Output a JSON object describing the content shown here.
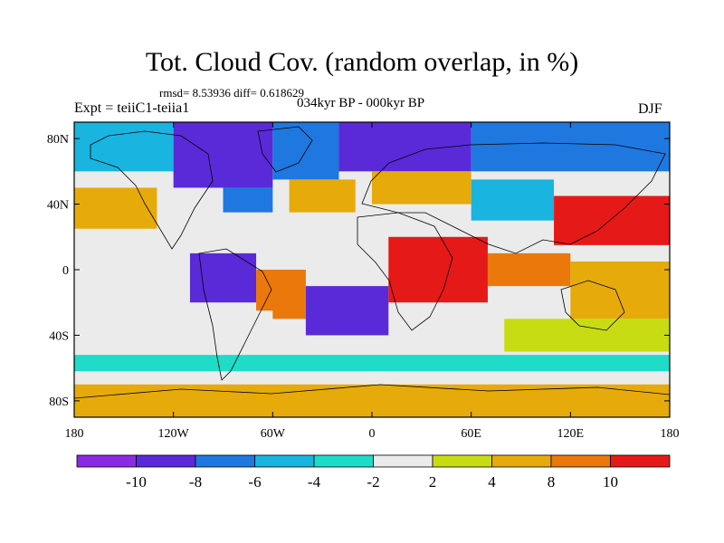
{
  "chart_data": {
    "type": "heatmap",
    "title": "Tot. Cloud Cov. (random overlap, in %)",
    "stats_line": "rmsd= 8.53936 diff= 0.618629",
    "left_label": "Expt = teiiC1-teiia1",
    "center_label": "034kyr BP - 000kyr BP",
    "right_label": "DJF",
    "projection": "cylindrical-equidistant",
    "xlim": [
      -180,
      180
    ],
    "ylim": [
      -90,
      90
    ],
    "x_ticks": [
      {
        "value": -180,
        "label": "180"
      },
      {
        "value": -120,
        "label": "120W"
      },
      {
        "value": -60,
        "label": "60W"
      },
      {
        "value": 0,
        "label": "0"
      },
      {
        "value": 60,
        "label": "60E"
      },
      {
        "value": 120,
        "label": "120E"
      },
      {
        "value": 180,
        "label": "180"
      }
    ],
    "y_ticks": [
      {
        "value": 80,
        "label": "80N"
      },
      {
        "value": 40,
        "label": "40N"
      },
      {
        "value": 0,
        "label": "0"
      },
      {
        "value": -40,
        "label": "40S"
      },
      {
        "value": -80,
        "label": "80S"
      }
    ],
    "levels": [
      -10,
      -8,
      -6,
      -4,
      -2,
      2,
      4,
      8,
      10
    ],
    "level_labels": [
      "-10",
      "-8",
      "-6",
      "-4",
      "-2",
      "2",
      "4",
      "8",
      "10"
    ],
    "colors": [
      "#8a2be2",
      "#5a2ad8",
      "#1e78e0",
      "#19b4e0",
      "#1edcc8",
      "#ebebeb",
      "#c8dc14",
      "#e6aa0a",
      "#eb780a",
      "#e61919"
    ],
    "legend_position": "bottom",
    "regions": [
      {
        "lon_min": -180,
        "lon_max": -120,
        "lat_min": 60,
        "lat_max": 90,
        "value": -6
      },
      {
        "lon_min": -120,
        "lon_max": -60,
        "lat_min": 50,
        "lat_max": 90,
        "value": -10
      },
      {
        "lon_min": -60,
        "lon_max": -20,
        "lat_min": 55,
        "lat_max": 90,
        "value": -8
      },
      {
        "lon_min": -20,
        "lon_max": 60,
        "lat_min": 60,
        "lat_max": 90,
        "value": -9
      },
      {
        "lon_min": 60,
        "lon_max": 180,
        "lat_min": 60,
        "lat_max": 90,
        "value": -7
      },
      {
        "lon_min": -180,
        "lon_max": -130,
        "lat_min": 25,
        "lat_max": 50,
        "value": 6
      },
      {
        "lon_min": -90,
        "lon_max": -60,
        "lat_min": 35,
        "lat_max": 50,
        "value": -8
      },
      {
        "lon_min": -50,
        "lon_max": -10,
        "lat_min": 35,
        "lat_max": 55,
        "value": 6
      },
      {
        "lon_min": 0,
        "lon_max": 60,
        "lat_min": 40,
        "lat_max": 60,
        "value": 5
      },
      {
        "lon_min": 60,
        "lon_max": 110,
        "lat_min": 30,
        "lat_max": 55,
        "value": -6
      },
      {
        "lon_min": 110,
        "lon_max": 180,
        "lat_min": 15,
        "lat_max": 45,
        "value": 10
      },
      {
        "lon_min": -180,
        "lon_max": -110,
        "lat_min": 0,
        "lat_max": 20,
        "value": 1
      },
      {
        "lon_min": -110,
        "lon_max": -70,
        "lat_min": -20,
        "lat_max": 10,
        "value": -10
      },
      {
        "lon_min": -70,
        "lon_max": -40,
        "lat_min": -30,
        "lat_max": 0,
        "value": 8
      },
      {
        "lon_min": -40,
        "lon_max": 10,
        "lat_min": -40,
        "lat_max": -10,
        "value": -10
      },
      {
        "lon_min": 10,
        "lon_max": 70,
        "lat_min": -20,
        "lat_max": 20,
        "value": 10
      },
      {
        "lon_min": 70,
        "lon_max": 120,
        "lat_min": -10,
        "lat_max": 10,
        "value": 8
      },
      {
        "lon_min": 120,
        "lon_max": 180,
        "lat_min": -30,
        "lat_max": 5,
        "value": 6
      },
      {
        "lon_min": -180,
        "lon_max": -60,
        "lat_min": -45,
        "lat_max": -25,
        "value": 0
      },
      {
        "lon_min": 80,
        "lon_max": 180,
        "lat_min": -50,
        "lat_max": -30,
        "value": 3
      },
      {
        "lon_min": -180,
        "lon_max": 180,
        "lat_min": -62,
        "lat_max": -52,
        "value": -4
      },
      {
        "lon_min": -180,
        "lon_max": 180,
        "lat_min": -90,
        "lat_max": -70,
        "value": 7
      }
    ]
  }
}
